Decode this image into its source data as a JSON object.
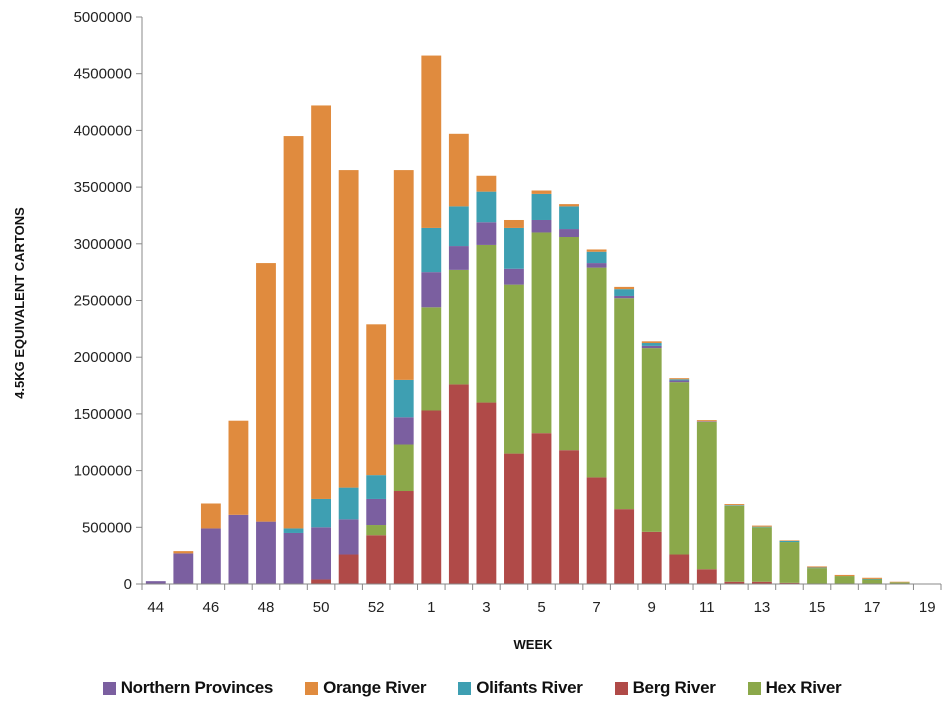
{
  "chart_data": {
    "type": "bar",
    "stacked": true,
    "xlabel": "WEEK",
    "ylabel": "4.5KG EQUIVALENT CARTONS",
    "ylim": [
      0,
      5000000
    ],
    "yticks": [
      0,
      500000,
      1000000,
      1500000,
      2000000,
      2500000,
      3000000,
      3500000,
      4000000,
      4500000,
      5000000
    ],
    "categories": [
      "44",
      "45",
      "46",
      "47",
      "48",
      "49",
      "50",
      "51",
      "52",
      "53",
      "1",
      "2",
      "3",
      "4",
      "5",
      "6",
      "7",
      "8",
      "9",
      "10",
      "11",
      "12",
      "13",
      "14",
      "15",
      "16",
      "17",
      "18",
      "19"
    ],
    "x_tick_labels": [
      "44",
      "46",
      "48",
      "50",
      "52",
      "1",
      "3",
      "5",
      "7",
      "9",
      "11",
      "13",
      "15",
      "17",
      "19"
    ],
    "grid": "none",
    "legend_position": "bottom",
    "series": [
      {
        "name": "Berg River",
        "color": "#b04a48",
        "values": [
          0,
          0,
          0,
          0,
          0,
          0,
          40000,
          260000,
          430000,
          820000,
          1530000,
          1760000,
          1600000,
          1150000,
          1330000,
          1180000,
          940000,
          660000,
          460000,
          260000,
          130000,
          20000,
          20000,
          10000,
          0,
          0,
          0,
          0,
          0
        ]
      },
      {
        "name": "Hex River",
        "color": "#8ba84a",
        "values": [
          0,
          0,
          0,
          0,
          0,
          0,
          0,
          0,
          90000,
          410000,
          910000,
          1010000,
          1390000,
          1490000,
          1770000,
          1880000,
          1850000,
          1860000,
          1620000,
          1520000,
          1300000,
          670000,
          480000,
          360000,
          140000,
          70000,
          40000,
          15000,
          0
        ]
      },
      {
        "name": "Northern Provinces",
        "color": "#7b5fa0",
        "values": [
          25000,
          270000,
          490000,
          610000,
          550000,
          450000,
          460000,
          310000,
          230000,
          240000,
          310000,
          210000,
          200000,
          140000,
          110000,
          70000,
          40000,
          20000,
          20000,
          15000,
          5000,
          0,
          0,
          0,
          0,
          0,
          0,
          0,
          0
        ]
      },
      {
        "name": "Olifants River",
        "color": "#3e9fb2",
        "values": [
          0,
          0,
          0,
          0,
          0,
          40000,
          250000,
          280000,
          210000,
          330000,
          390000,
          350000,
          270000,
          360000,
          230000,
          200000,
          100000,
          60000,
          25000,
          10000,
          0,
          5000,
          5000,
          10000,
          5000,
          0,
          5000,
          0,
          0
        ]
      },
      {
        "name": "Orange River",
        "color": "#e08b3e",
        "values": [
          0,
          20000,
          220000,
          830000,
          2280000,
          3460000,
          3470000,
          2800000,
          1330000,
          1850000,
          1520000,
          640000,
          140000,
          70000,
          30000,
          20000,
          20000,
          20000,
          15000,
          10000,
          10000,
          10000,
          10000,
          5000,
          10000,
          10000,
          10000,
          5000,
          0
        ]
      }
    ],
    "legend_order": [
      "Northern Provinces",
      "Orange River",
      "Olifants River",
      "Berg River",
      "Hex River"
    ]
  }
}
